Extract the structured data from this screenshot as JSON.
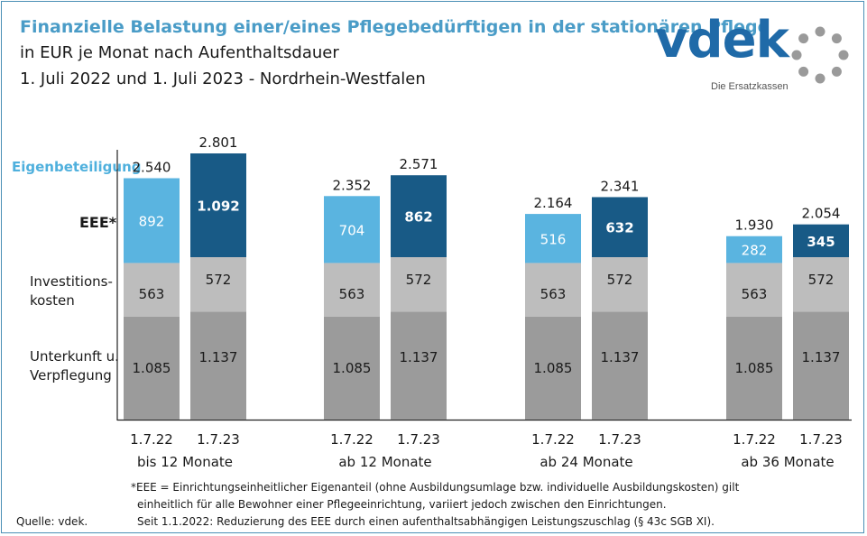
{
  "title": {
    "line1": "Finanzielle Belastung einer/eines Pflegebedürftigen in der stationären Pflege",
    "line2": "in EUR je Monat nach Aufenthaltsdauer",
    "line3": "1. Juli 2022 und 1. Juli 2023 - Nordrhein-Westfalen"
  },
  "logo": {
    "text": "vdek",
    "subtitle": "Die Ersatzkassen"
  },
  "row_labels": {
    "eigenbeteiligung": "Eigenbeteiligung",
    "eee": "EEE*",
    "investitionskosten_1": "Investitions-",
    "investitionskosten_2": "kosten",
    "unterkunft_1": "Unterkunft u.",
    "unterkunft_2": "Verpflegung"
  },
  "footnotes": {
    "line1": "*EEE = Einrichtungseinheitlicher  Eigenanteil (ohne Ausbildungsumlage bzw. individuelle Ausbildungskosten) gilt",
    "line2": "einheitlich für alle Bewohner einer Pflegeeinrichtung, variiert jedoch zwischen den Einrichtungen.",
    "line3": "Seit 1.1.2022: Reduzierung des EEE durch einen aufenthaltsabhängigen Leistungszuschlag  (§ 43c SGB XI)."
  },
  "source": "Quelle: vdek.",
  "colors": {
    "unterkunft": "#9b9b9b",
    "invest": "#bdbdbd",
    "eee_2022": "#5ab4e0",
    "eee_2023": "#185a86",
    "title_blue": "#4a9cc7"
  },
  "chart_data": {
    "type": "bar",
    "stacked": true,
    "groups": [
      {
        "label": "bis 12 Monate",
        "bars": [
          {
            "date": "1.7.22",
            "unterkunft": "1.085",
            "invest": "563",
            "eee": "892",
            "total": "2.540"
          },
          {
            "date": "1.7.23",
            "unterkunft": "1.137",
            "invest": "572",
            "eee": "1.092",
            "total": "2.801"
          }
        ]
      },
      {
        "label": "ab 12 Monate",
        "bars": [
          {
            "date": "1.7.22",
            "unterkunft": "1.085",
            "invest": "563",
            "eee": "704",
            "total": "2.352"
          },
          {
            "date": "1.7.23",
            "unterkunft": "1.137",
            "invest": "572",
            "eee": "862",
            "total": "2.571"
          }
        ]
      },
      {
        "label": "ab 24 Monate",
        "bars": [
          {
            "date": "1.7.22",
            "unterkunft": "1.085",
            "invest": "563",
            "eee": "516",
            "total": "2.164"
          },
          {
            "date": "1.7.23",
            "unterkunft": "1.137",
            "invest": "572",
            "eee": "632",
            "total": "2.341"
          }
        ]
      },
      {
        "label": "ab 36 Monate",
        "bars": [
          {
            "date": "1.7.22",
            "unterkunft": "1.085",
            "invest": "563",
            "eee": "282",
            "total": "1.930"
          },
          {
            "date": "1.7.23",
            "unterkunft": "1.137",
            "invest": "572",
            "eee": "345",
            "total": "2.054"
          }
        ]
      }
    ],
    "series": [
      {
        "name": "Unterkunft u. Verpflegung"
      },
      {
        "name": "Investitionskosten"
      },
      {
        "name": "EEE*"
      }
    ],
    "ylim": [
      0,
      2801
    ]
  }
}
